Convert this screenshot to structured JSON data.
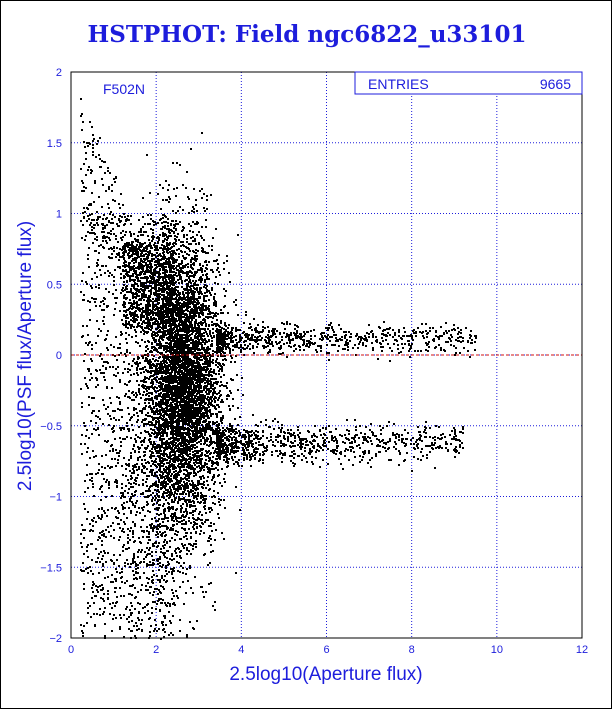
{
  "page_title": "HSTPHOT: Field ngc6822_u33101",
  "colors": {
    "text": "#1d1ddc",
    "grid": "#1d1ddc",
    "frame": "#000000",
    "points": "#000000",
    "zero_line": "#d01010"
  },
  "chart_data": {
    "type": "scatter",
    "title": "HSTPHOT: Field ngc6822_u33101",
    "xlabel": "2.5log10(Aperture flux)",
    "ylabel": "2.5log10(PSF flux/Aperture flux)",
    "xlim": [
      0,
      12
    ],
    "ylim": [
      -2,
      2
    ],
    "xticks": [
      0,
      2,
      4,
      6,
      8,
      10,
      12
    ],
    "yticks": [
      -2,
      -1.5,
      -1,
      -0.5,
      0,
      0.5,
      1,
      1.5,
      2
    ],
    "xtick_labels": [
      "0",
      "2",
      "4",
      "6",
      "8",
      "10",
      "12"
    ],
    "ytick_labels": [
      "-2",
      "-1.5",
      "-1",
      "-0.5",
      "0",
      "0.5",
      "1",
      "1.5",
      "2"
    ],
    "grid": true,
    "filter_label": "F502N",
    "stats_box": {
      "label": "ENTRIES",
      "value": "9665"
    },
    "reference_line": {
      "y": 0
    },
    "distribution": {
      "entries": 9665,
      "core_x_center": 2.6,
      "core_x_spread": 0.45,
      "core_y_center": -0.2,
      "core_y_spread": 0.5,
      "upper_branch_y": 0.12,
      "upper_branch_x_range": [
        3.5,
        9.5
      ],
      "lower_branch_y": -0.62,
      "lower_branch_x_range": [
        3.5,
        9.2
      ]
    }
  }
}
